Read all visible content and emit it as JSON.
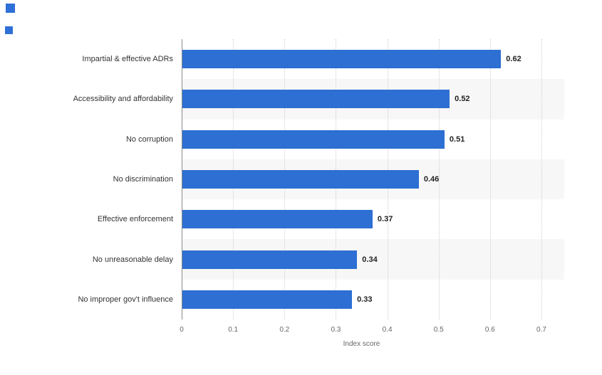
{
  "decor": {
    "square_color": "#2f6fd8"
  },
  "chart_data": {
    "type": "bar",
    "orientation": "horizontal",
    "title": "",
    "categories": [
      "Impartial & effective ADRs",
      "Accessibility and affordability",
      "No corruption",
      "No discrimination",
      "Effective enforcement",
      "No unreasonable delay",
      "No improper gov't influence"
    ],
    "values": [
      0.62,
      0.52,
      0.51,
      0.46,
      0.37,
      0.34,
      0.33
    ],
    "value_labels": [
      "0.62",
      "0.52",
      "0.51",
      "0.46",
      "0.37",
      "0.34",
      "0.33"
    ],
    "xlabel": "Index score",
    "ylabel": "",
    "xlim": [
      0,
      0.7
    ],
    "xticks": [
      0,
      0.1,
      0.2,
      0.3,
      0.4,
      0.5,
      0.6,
      0.7
    ],
    "xtick_labels": [
      "0",
      "0.1",
      "0.2",
      "0.3",
      "0.4",
      "0.5",
      "0.6",
      "0.7"
    ],
    "grid": "dotted-vertical",
    "legend": "none",
    "bar_color": "#2d6fd3",
    "stripe_color": "#f7f7f7",
    "gridline_color": "#cfcfcf",
    "axis_color": "#8a8a8a"
  }
}
